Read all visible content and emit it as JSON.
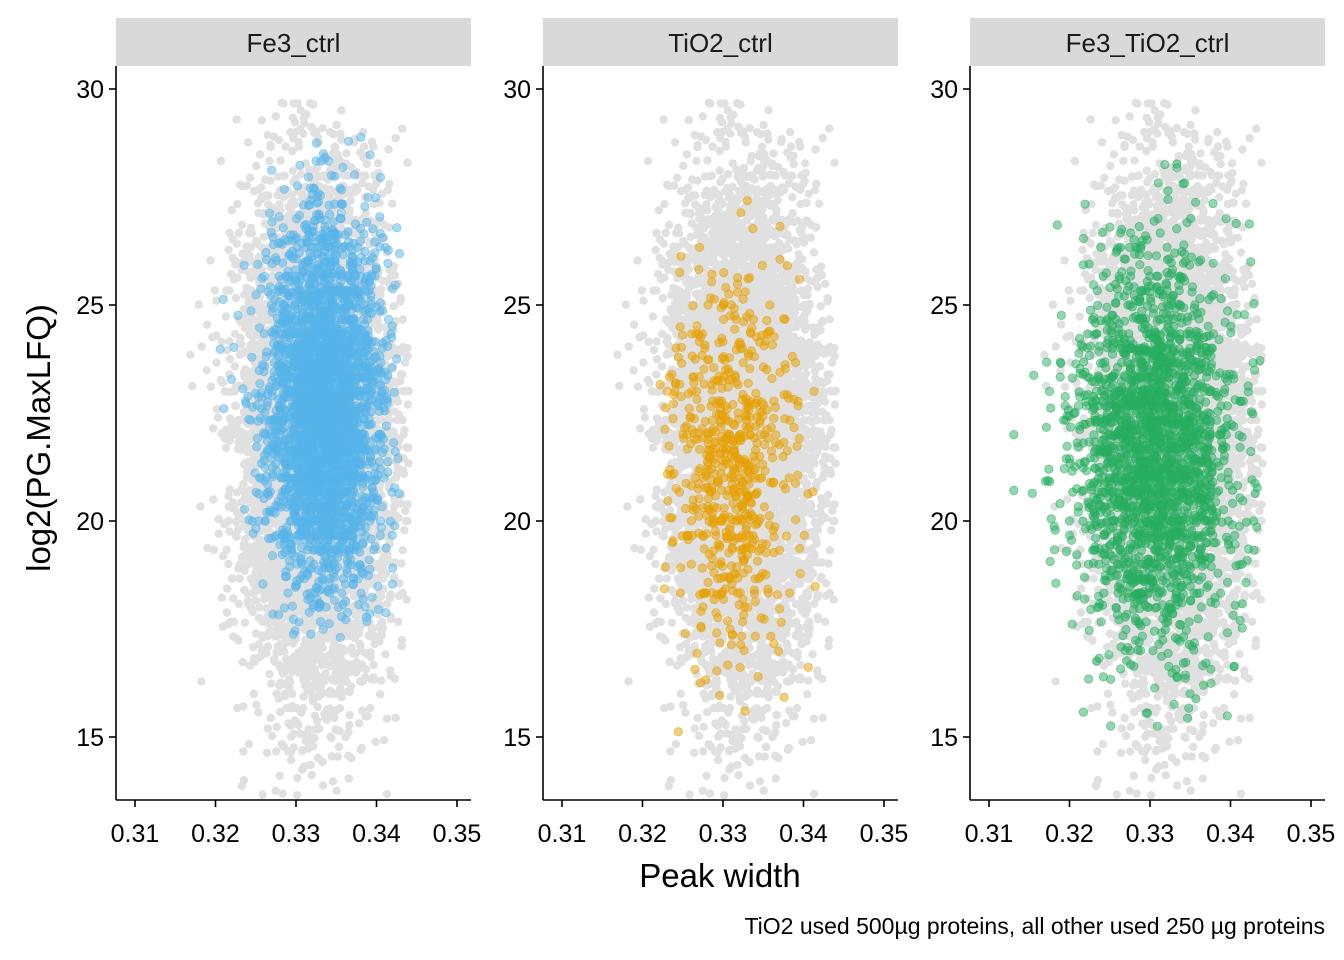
{
  "chart_data": {
    "type": "scatter",
    "facets": [
      "Fe3_ctrl",
      "TiO2_ctrl",
      "Fe3_TiO2_ctrl"
    ],
    "xlabel": "Peak width",
    "ylabel": "log2(PG.MaxLFQ)",
    "caption": "TiO2 used 500µg proteins, all other used 250 µg proteins",
    "xlim": [
      0.308,
      0.351
    ],
    "ylim": [
      13.5,
      30.5
    ],
    "x_ticks": [
      0.31,
      0.32,
      0.33,
      0.34,
      0.35
    ],
    "x_tick_labels": [
      "0.31",
      "0.32",
      "0.33",
      "0.34",
      "0.35"
    ],
    "y_ticks": [
      15,
      20,
      25,
      30
    ],
    "y_tick_labels": [
      "15",
      "20",
      "25",
      "30"
    ],
    "background_color": "#e0e0e0",
    "series_colors": [
      "#56b4e9",
      "#e69f00",
      "#27ae60"
    ],
    "background_points": {
      "description": "all samples shown in grey in every panel",
      "count": 7000,
      "x_mean": 0.3325,
      "x_sd": 0.0045,
      "y_mean": 22.0,
      "y_sd": 2.9,
      "x_range": [
        0.309,
        0.344
      ],
      "y_range": [
        13.5,
        29.7
      ]
    },
    "series": [
      {
        "name": "Fe3_ctrl",
        "count": 3200,
        "x_mean": 0.3335,
        "x_sd": 0.0035,
        "y_mean": 22.6,
        "y_sd": 2.1,
        "x_range": [
          0.32,
          0.343
        ],
        "y_range": [
          17.3,
          29.7
        ]
      },
      {
        "name": "TiO2_ctrl",
        "count": 650,
        "x_mean": 0.3315,
        "x_sd": 0.004,
        "y_mean": 21.3,
        "y_sd": 2.2,
        "x_range": [
          0.321,
          0.342
        ],
        "y_range": [
          14.3,
          29.2
        ]
      },
      {
        "name": "Fe3_TiO2_ctrl",
        "count": 2300,
        "x_mean": 0.3305,
        "x_sd": 0.005,
        "y_mean": 21.6,
        "y_sd": 2.2,
        "x_range": [
          0.31,
          0.344
        ],
        "y_range": [
          14.8,
          28.8
        ]
      }
    ]
  }
}
